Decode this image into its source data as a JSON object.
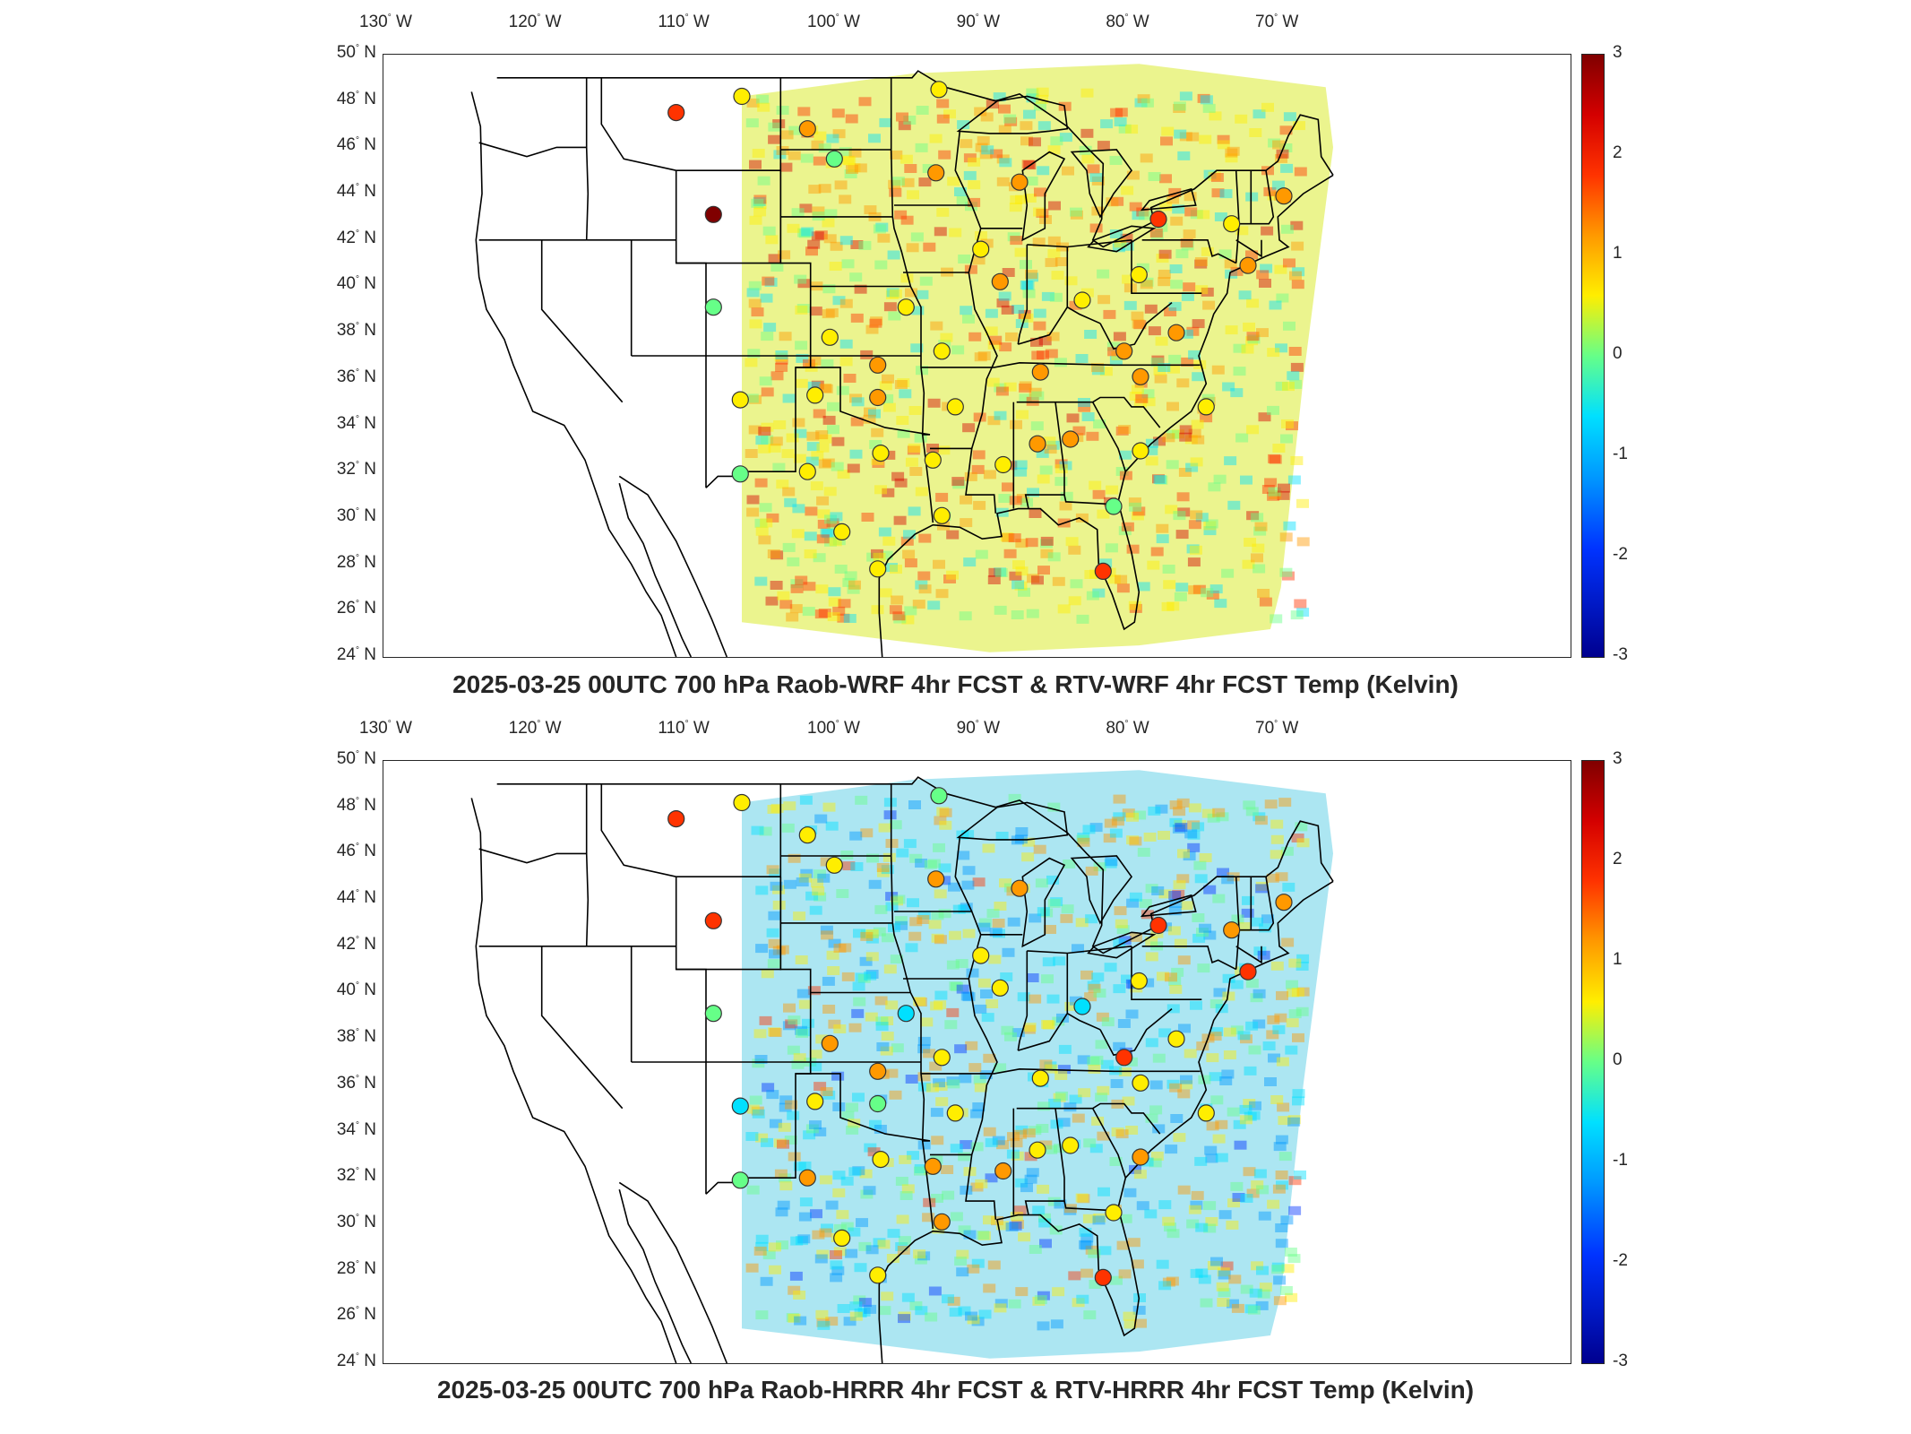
{
  "lon_labels": [
    "130",
    "120",
    "110",
    "100",
    "90",
    "80",
    "70"
  ],
  "lon_hemisphere": "W",
  "lat_labels": [
    "50",
    "48",
    "46",
    "44",
    "42",
    "40",
    "38",
    "36",
    "34",
    "32",
    "30",
    "28",
    "26",
    "24"
  ],
  "lat_hemisphere": "N",
  "degree_symbol": "°",
  "colorbar": {
    "ticks": [
      "3",
      "2",
      "1",
      "0",
      "-1",
      "-2",
      "-3"
    ],
    "min": -3,
    "max": 3,
    "colors": [
      "#00008f",
      "#0033ff",
      "#0099ff",
      "#00e0ff",
      "#66ff88",
      "#ffee00",
      "#ff9900",
      "#ff3300",
      "#d40000",
      "#800000"
    ]
  },
  "panels": [
    {
      "title": "2025-03-25 00UTC 700 hPa Raob-WRF 4hr FCST & RTV-WRF 4hr FCST Temp (Kelvin)",
      "field_tint": "#e8f27a",
      "stations": [
        {
          "lon": -111.0,
          "lat": 47.5,
          "value": 1.3
        },
        {
          "lon": -106.6,
          "lat": 48.2,
          "value": 0.4
        },
        {
          "lon": -108.5,
          "lat": 43.1,
          "value": 2.4
        },
        {
          "lon": -108.5,
          "lat": 39.1,
          "value": -0.5
        },
        {
          "lon": -106.7,
          "lat": 35.1,
          "value": 0.1
        },
        {
          "lon": -106.7,
          "lat": 31.9,
          "value": -0.1
        },
        {
          "lon": -102.2,
          "lat": 46.8,
          "value": 0.6
        },
        {
          "lon": -100.4,
          "lat": 45.5,
          "value": -0.5
        },
        {
          "lon": -93.4,
          "lat": 48.5,
          "value": 0.2
        },
        {
          "lon": -93.6,
          "lat": 44.9,
          "value": 0.9
        },
        {
          "lon": -88.0,
          "lat": 44.5,
          "value": 1.0
        },
        {
          "lon": -90.6,
          "lat": 41.6,
          "value": 0.5
        },
        {
          "lon": -89.3,
          "lat": 40.2,
          "value": 1.1
        },
        {
          "lon": -95.6,
          "lat": 39.1,
          "value": 0.3
        },
        {
          "lon": -100.7,
          "lat": 37.8,
          "value": 0.1
        },
        {
          "lon": -97.5,
          "lat": 36.6,
          "value": 0.8
        },
        {
          "lon": -97.5,
          "lat": 35.2,
          "value": 1.0
        },
        {
          "lon": -101.7,
          "lat": 35.3,
          "value": 0.0
        },
        {
          "lon": -102.2,
          "lat": 32.0,
          "value": 0.2
        },
        {
          "lon": -97.3,
          "lat": 32.8,
          "value": 0.5
        },
        {
          "lon": -99.9,
          "lat": 29.4,
          "value": 0.3
        },
        {
          "lon": -97.5,
          "lat": 27.8,
          "value": 0.1
        },
        {
          "lon": -93.2,
          "lat": 37.2,
          "value": 0.3
        },
        {
          "lon": -92.3,
          "lat": 34.8,
          "value": 0.5
        },
        {
          "lon": -93.8,
          "lat": 32.5,
          "value": 0.2
        },
        {
          "lon": -89.1,
          "lat": 32.3,
          "value": 0.5
        },
        {
          "lon": -93.2,
          "lat": 30.1,
          "value": 0.4
        },
        {
          "lon": -86.6,
          "lat": 36.3,
          "value": 1.0
        },
        {
          "lon": -86.8,
          "lat": 33.2,
          "value": 0.6
        },
        {
          "lon": -84.6,
          "lat": 33.4,
          "value": 0.6
        },
        {
          "lon": -83.8,
          "lat": 39.4,
          "value": 0.0
        },
        {
          "lon": -81.0,
          "lat": 37.2,
          "value": 0.8
        },
        {
          "lon": -80.0,
          "lat": 40.5,
          "value": 0.5
        },
        {
          "lon": -79.9,
          "lat": 36.1,
          "value": 0.9
        },
        {
          "lon": -79.9,
          "lat": 32.9,
          "value": 0.5
        },
        {
          "lon": -81.7,
          "lat": 30.5,
          "value": -0.4
        },
        {
          "lon": -82.4,
          "lat": 27.7,
          "value": 1.7
        },
        {
          "lon": -78.7,
          "lat": 42.9,
          "value": 1.7
        },
        {
          "lon": -73.8,
          "lat": 42.7,
          "value": 0.4
        },
        {
          "lon": -72.7,
          "lat": 40.9,
          "value": 1.1
        },
        {
          "lon": -77.5,
          "lat": 38.0,
          "value": 0.6
        },
        {
          "lon": -75.5,
          "lat": 34.8,
          "value": 0.5
        },
        {
          "lon": -70.3,
          "lat": 43.9,
          "value": 0.8
        }
      ]
    },
    {
      "title": "2025-03-25 00UTC 700 hPa Raob-HRRR 4hr FCST & RTV-HRRR 4hr FCST Temp (Kelvin)",
      "field_tint": "#9ee2f0",
      "stations": [
        {
          "lon": -111.0,
          "lat": 47.5,
          "value": 1.3
        },
        {
          "lon": -106.6,
          "lat": 48.2,
          "value": 0.2
        },
        {
          "lon": -108.5,
          "lat": 43.1,
          "value": 1.2
        },
        {
          "lon": -108.5,
          "lat": 39.1,
          "value": -0.1
        },
        {
          "lon": -106.7,
          "lat": 35.1,
          "value": -0.6
        },
        {
          "lon": -106.7,
          "lat": 31.9,
          "value": -0.2
        },
        {
          "lon": -102.2,
          "lat": 46.8,
          "value": 0.2
        },
        {
          "lon": -100.4,
          "lat": 45.5,
          "value": 0.5
        },
        {
          "lon": -93.4,
          "lat": 48.5,
          "value": -0.2
        },
        {
          "lon": -93.6,
          "lat": 44.9,
          "value": 0.8
        },
        {
          "lon": -88.0,
          "lat": 44.5,
          "value": 1.0
        },
        {
          "lon": -90.6,
          "lat": 41.6,
          "value": 0.0
        },
        {
          "lon": -89.3,
          "lat": 40.2,
          "value": 0.3
        },
        {
          "lon": -95.6,
          "lat": 39.1,
          "value": -0.6
        },
        {
          "lon": -100.7,
          "lat": 37.8,
          "value": 0.6
        },
        {
          "lon": -97.5,
          "lat": 36.6,
          "value": 0.8
        },
        {
          "lon": -97.5,
          "lat": 35.2,
          "value": -0.2
        },
        {
          "lon": -101.7,
          "lat": 35.3,
          "value": 0.3
        },
        {
          "lon": -102.2,
          "lat": 32.0,
          "value": 0.8
        },
        {
          "lon": -97.3,
          "lat": 32.8,
          "value": 0.3
        },
        {
          "lon": -99.9,
          "lat": 29.4,
          "value": 0.4
        },
        {
          "lon": -97.5,
          "lat": 27.8,
          "value": 0.3
        },
        {
          "lon": -93.2,
          "lat": 37.2,
          "value": 0.2
        },
        {
          "lon": -92.3,
          "lat": 34.8,
          "value": 0.3
        },
        {
          "lon": -93.8,
          "lat": 32.5,
          "value": 0.8
        },
        {
          "lon": -89.1,
          "lat": 32.3,
          "value": 0.9
        },
        {
          "lon": -93.2,
          "lat": 30.1,
          "value": 1.0
        },
        {
          "lon": -86.6,
          "lat": 36.3,
          "value": 0.2
        },
        {
          "lon": -86.8,
          "lat": 33.2,
          "value": 0.5
        },
        {
          "lon": -84.6,
          "lat": 33.4,
          "value": 0.3
        },
        {
          "lon": -83.8,
          "lat": 39.4,
          "value": -1.0
        },
        {
          "lon": -81.0,
          "lat": 37.2,
          "value": 1.3
        },
        {
          "lon": -80.0,
          "lat": 40.5,
          "value": 0.3
        },
        {
          "lon": -79.9,
          "lat": 36.1,
          "value": 0.4
        },
        {
          "lon": -79.9,
          "lat": 32.9,
          "value": 0.8
        },
        {
          "lon": -81.7,
          "lat": 30.5,
          "value": 0.5
        },
        {
          "lon": -82.4,
          "lat": 27.7,
          "value": 1.4
        },
        {
          "lon": -78.7,
          "lat": 42.9,
          "value": 1.7
        },
        {
          "lon": -73.8,
          "lat": 42.7,
          "value": 0.8
        },
        {
          "lon": -72.7,
          "lat": 40.9,
          "value": 1.5
        },
        {
          "lon": -77.5,
          "lat": 38.0,
          "value": 0.4
        },
        {
          "lon": -75.5,
          "lat": 34.8,
          "value": 0.5
        },
        {
          "lon": -70.3,
          "lat": 43.9,
          "value": 0.8
        }
      ]
    }
  ]
}
